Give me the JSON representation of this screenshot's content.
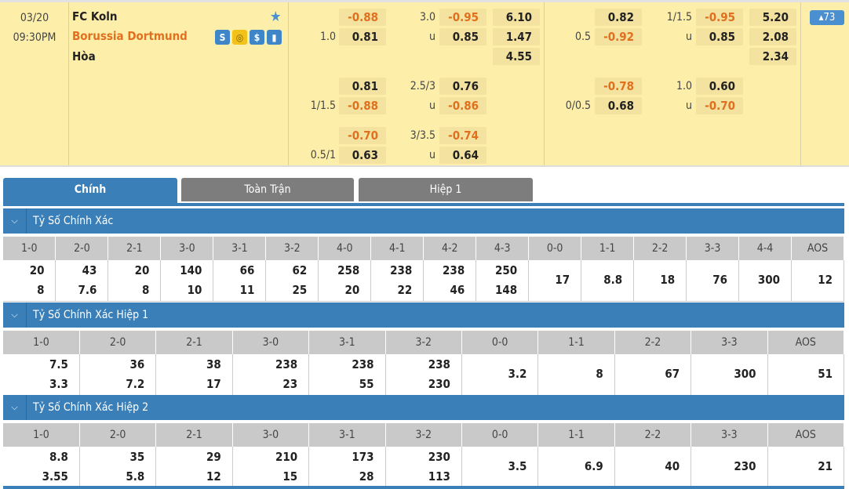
{
  "match": {
    "date": "03/20",
    "time": "09:30PM",
    "home": "FC Koln",
    "away": "Borussia Dortmund",
    "draw": "Hòa",
    "icons": [
      "s-icon",
      "coin-icon",
      "dollar-icon",
      "stats-icon"
    ],
    "more_count": "73",
    "colors": {
      "bg": "#fdeeaa",
      "neg": "#e0701e",
      "accent": "#3a7fb8",
      "away": "#e0701e"
    },
    "groups": [
      {
        "rows": [
          {
            "lbl1": "",
            "v1": "-0.88",
            "lbl2": "3.0",
            "v2": "-0.95",
            "v3": "6.10"
          },
          {
            "lbl1": "1.0",
            "v1": "0.81",
            "lbl2": "u",
            "v2": "0.85",
            "v3": "1.47"
          },
          {
            "lbl1": "",
            "v1": "",
            "lbl2": "",
            "v2": "",
            "v3": "4.55"
          },
          {
            "lbl1": "",
            "v1": "0.81",
            "lbl2": "2.5/3",
            "v2": "0.76",
            "v3": ""
          },
          {
            "lbl1": "1/1.5",
            "v1": "-0.88",
            "lbl2": "u",
            "v2": "-0.86",
            "v3": ""
          },
          {
            "lbl1": "",
            "v1": "-0.70",
            "lbl2": "3/3.5",
            "v2": "-0.74",
            "v3": ""
          },
          {
            "lbl1": "0.5/1",
            "v1": "0.63",
            "lbl2": "u",
            "v2": "0.64",
            "v3": ""
          }
        ]
      },
      {
        "rows": [
          {
            "lbl1": "",
            "v1": "0.82",
            "lbl2": "1/1.5",
            "v2": "-0.95",
            "v3": "5.20"
          },
          {
            "lbl1": "0.5",
            "v1": "-0.92",
            "lbl2": "u",
            "v2": "0.85",
            "v3": "2.08"
          },
          {
            "lbl1": "",
            "v1": "",
            "lbl2": "",
            "v2": "",
            "v3": "2.34"
          },
          {
            "lbl1": "",
            "v1": "-0.78",
            "lbl2": "1.0",
            "v2": "0.60",
            "v3": ""
          },
          {
            "lbl1": "0/0.5",
            "v1": "0.68",
            "lbl2": "u",
            "v2": "-0.70",
            "v3": ""
          },
          {
            "lbl1": "",
            "v1": "",
            "lbl2": "",
            "v2": "",
            "v3": ""
          },
          {
            "lbl1": "",
            "v1": "",
            "lbl2": "",
            "v2": "",
            "v3": ""
          }
        ]
      }
    ]
  },
  "tabs": [
    {
      "label": "Chính",
      "active": true
    },
    {
      "label": "Toàn Trận",
      "active": false
    },
    {
      "label": "Hiệp 1",
      "active": false
    }
  ],
  "sections": [
    {
      "title": "Tỷ Số Chính Xác",
      "headers": [
        "1-0",
        "2-0",
        "2-1",
        "3-0",
        "3-1",
        "3-2",
        "4-0",
        "4-1",
        "4-2",
        "4-3",
        "0-0",
        "1-1",
        "2-2",
        "3-3",
        "4-4",
        "AOS"
      ],
      "values": [
        [
          "20",
          "8"
        ],
        [
          "43",
          "7.6"
        ],
        [
          "20",
          "8"
        ],
        [
          "140",
          "10"
        ],
        [
          "66",
          "11"
        ],
        [
          "62",
          "25"
        ],
        [
          "258",
          "20"
        ],
        [
          "238",
          "22"
        ],
        [
          "238",
          "46"
        ],
        [
          "250",
          "148"
        ],
        [
          "17"
        ],
        [
          "8.8"
        ],
        [
          "18"
        ],
        [
          "76"
        ],
        [
          "300"
        ],
        [
          "12"
        ]
      ]
    },
    {
      "title": "Tỷ Số Chính Xác Hiệp 1",
      "headers": [
        "1-0",
        "2-0",
        "2-1",
        "3-0",
        "3-1",
        "3-2",
        "0-0",
        "1-1",
        "2-2",
        "3-3",
        "AOS"
      ],
      "values": [
        [
          "7.5",
          "3.3"
        ],
        [
          "36",
          "7.2"
        ],
        [
          "38",
          "17"
        ],
        [
          "238",
          "23"
        ],
        [
          "238",
          "55"
        ],
        [
          "238",
          "230"
        ],
        [
          "3.2"
        ],
        [
          "8"
        ],
        [
          "67"
        ],
        [
          "300"
        ],
        [
          "51"
        ]
      ]
    },
    {
      "title": "Tỷ Số Chính Xác Hiệp 2",
      "headers": [
        "1-0",
        "2-0",
        "2-1",
        "3-0",
        "3-1",
        "3-2",
        "0-0",
        "1-1",
        "2-2",
        "3-3",
        "AOS"
      ],
      "values": [
        [
          "8.8",
          "3.55"
        ],
        [
          "35",
          "5.8"
        ],
        [
          "29",
          "12"
        ],
        [
          "210",
          "15"
        ],
        [
          "173",
          "28"
        ],
        [
          "230",
          "113"
        ],
        [
          "3.5"
        ],
        [
          "6.9"
        ],
        [
          "40"
        ],
        [
          "230"
        ],
        [
          "21"
        ]
      ]
    }
  ]
}
